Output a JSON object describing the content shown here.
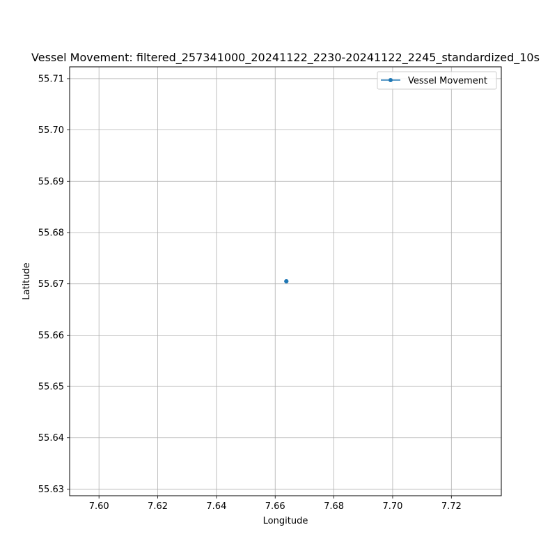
{
  "chart_data": {
    "type": "line",
    "title": "Vessel Movement: filtered_257341000_20241122_2230-20241122_2245_standardized_10s",
    "xlabel": "Longitude",
    "ylabel": "Latitude",
    "xlim": [
      7.59,
      7.737
    ],
    "ylim": [
      55.6287,
      55.7123
    ],
    "x_ticks": [
      "7.60",
      "7.62",
      "7.64",
      "7.66",
      "7.68",
      "7.70",
      "7.72"
    ],
    "y_ticks": [
      "55.63",
      "55.64",
      "55.65",
      "55.66",
      "55.67",
      "55.68",
      "55.69",
      "55.70",
      "55.71"
    ],
    "grid": true,
    "legend_position": "upper right",
    "series": [
      {
        "name": "Vessel Movement",
        "color": "#1f77b4",
        "marker": "circle",
        "points": [
          {
            "x": 7.6638,
            "y": 55.6705
          },
          {
            "x": 7.6638,
            "y": 55.6705
          },
          {
            "x": 7.6638,
            "y": 55.6705
          }
        ]
      }
    ]
  }
}
